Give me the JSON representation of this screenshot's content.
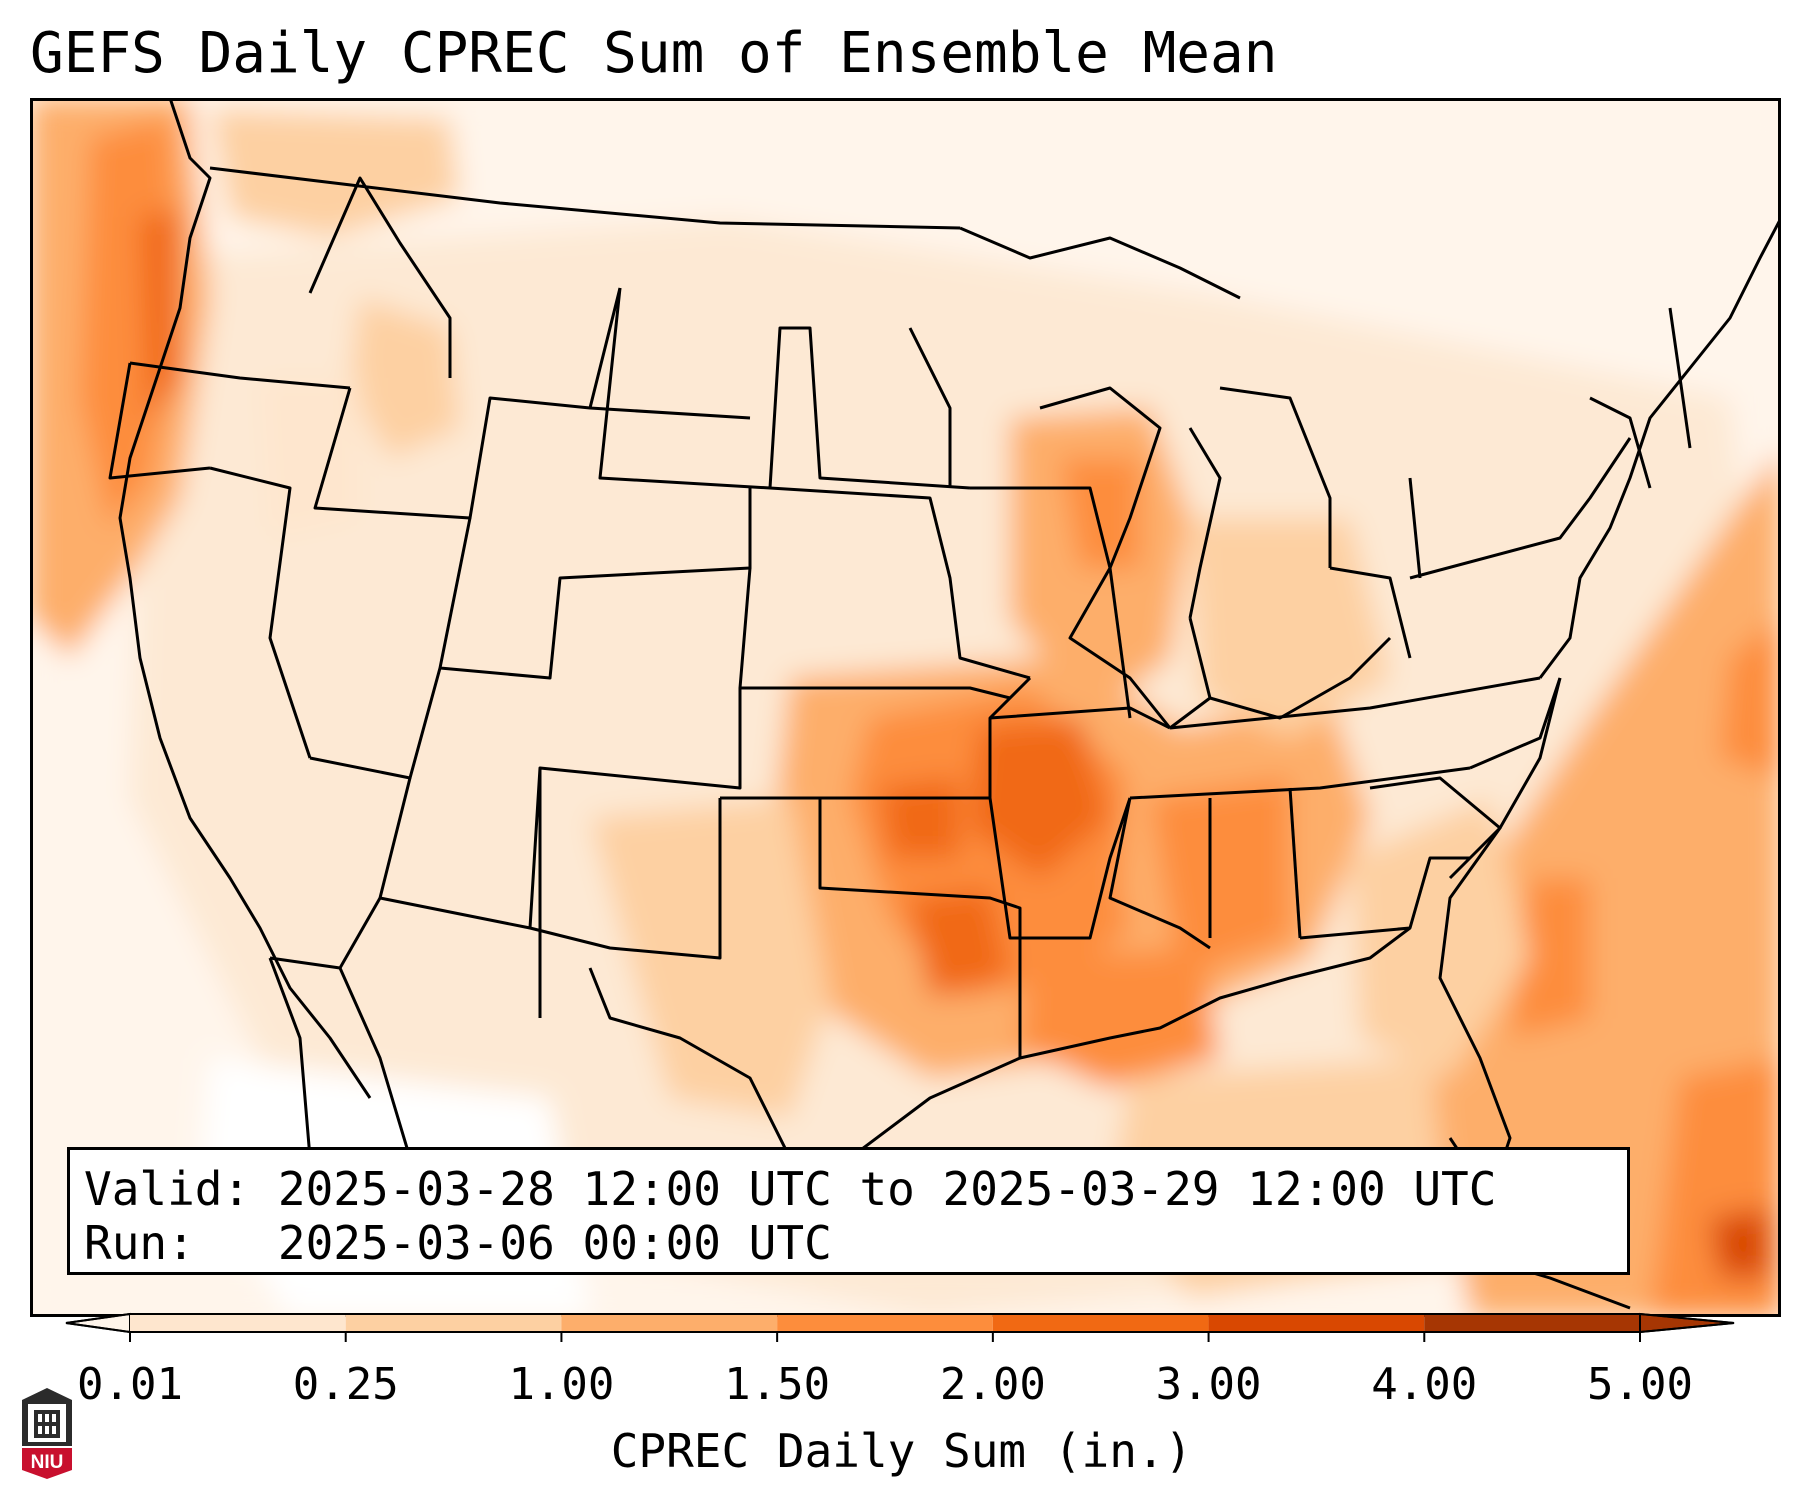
{
  "title": "GEFS Daily CPREC Sum of Ensemble Mean",
  "info": {
    "valid_label": "Valid:",
    "valid_value": "2025-03-28 12:00 UTC to 2025-03-29 12:00 UTC",
    "run_label": "Run:",
    "run_value": "2025-03-06 00:00 UTC"
  },
  "colorbar": {
    "label": "CPREC Daily Sum (in.)",
    "ticks": [
      "0.01",
      "0.25",
      "1.00",
      "1.50",
      "2.00",
      "3.00",
      "4.00",
      "5.00"
    ],
    "colors": [
      "#fff5eb",
      "#fee6ce",
      "#fdd0a2",
      "#fdae6b",
      "#fd8d3c",
      "#f16913",
      "#d94801",
      "#a63603"
    ],
    "extend": "both"
  },
  "map": {
    "region": "Contiguous United States",
    "field": "CPREC daily sum, ensemble mean",
    "colormap": "Oranges",
    "max_region": "Arkansas / Missouri / Oklahoma / east Texas"
  },
  "logo": {
    "text": "NIU",
    "color": "#c8102e"
  }
}
